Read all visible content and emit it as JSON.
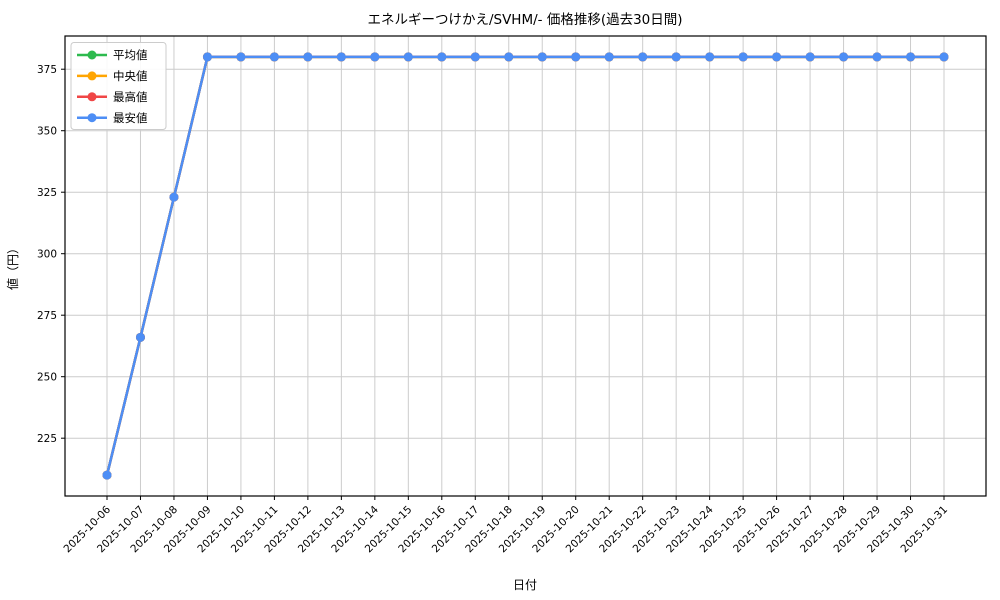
{
  "chart_data": {
    "type": "line",
    "title": "エネルギーつけかえ/SVHM/- 価格推移(過去30日間)",
    "xlabel": "日付",
    "ylabel": "値（円）",
    "grid": true,
    "legend_position": "upper left",
    "ylim": [
      201.5,
      388.5
    ],
    "yticks": [
      225,
      250,
      275,
      300,
      325,
      350,
      375
    ],
    "categories": [
      "2025-10-06",
      "2025-10-07",
      "2025-10-08",
      "2025-10-09",
      "2025-10-10",
      "2025-10-11",
      "2025-10-12",
      "2025-10-13",
      "2025-10-14",
      "2025-10-15",
      "2025-10-16",
      "2025-10-17",
      "2025-10-18",
      "2025-10-19",
      "2025-10-20",
      "2025-10-21",
      "2025-10-22",
      "2025-10-23",
      "2025-10-24",
      "2025-10-25",
      "2025-10-26",
      "2025-10-27",
      "2025-10-28",
      "2025-10-29",
      "2025-10-30",
      "2025-10-31"
    ],
    "series": [
      {
        "key": "average",
        "name": "平均値",
        "color": "#2dba4e",
        "values": [
          210,
          266,
          323,
          380,
          380,
          380,
          380,
          380,
          380,
          380,
          380,
          380,
          380,
          380,
          380,
          380,
          380,
          380,
          380,
          380,
          380,
          380,
          380,
          380,
          380,
          380
        ]
      },
      {
        "key": "median",
        "name": "中央値",
        "color": "#ffa502",
        "values": [
          210,
          266,
          323,
          380,
          380,
          380,
          380,
          380,
          380,
          380,
          380,
          380,
          380,
          380,
          380,
          380,
          380,
          380,
          380,
          380,
          380,
          380,
          380,
          380,
          380,
          380
        ]
      },
      {
        "key": "max",
        "name": "最高値",
        "color": "#f04646",
        "values": [
          210,
          266,
          323,
          380,
          380,
          380,
          380,
          380,
          380,
          380,
          380,
          380,
          380,
          380,
          380,
          380,
          380,
          380,
          380,
          380,
          380,
          380,
          380,
          380,
          380,
          380
        ]
      },
      {
        "key": "min",
        "name": "最安値",
        "color": "#4d8ef5",
        "values": [
          210,
          266,
          323,
          380,
          380,
          380,
          380,
          380,
          380,
          380,
          380,
          380,
          380,
          380,
          380,
          380,
          380,
          380,
          380,
          380,
          380,
          380,
          380,
          380,
          380,
          380
        ]
      }
    ],
    "colors": {
      "grid": "#cccccc",
      "spine": "#000000",
      "text": "#000000",
      "legend_border": "#cccccc",
      "background": "#ffffff"
    }
  }
}
